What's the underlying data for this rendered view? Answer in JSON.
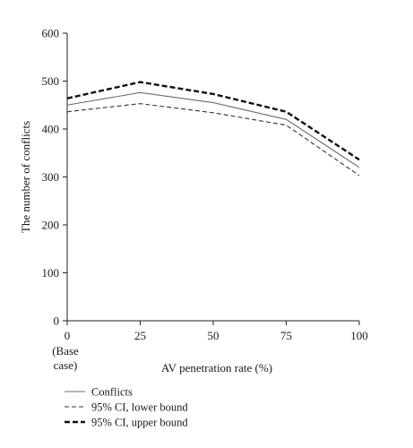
{
  "chart_data": {
    "type": "line",
    "title": "",
    "xlabel": "AV penetration rate (%)",
    "ylabel": "The number of conflicts",
    "x": [
      0,
      25,
      50,
      75,
      100
    ],
    "x_tick_labels": [
      "0",
      "25",
      "50",
      "75",
      "100"
    ],
    "x_tick_sublabel": [
      "(Base",
      "case)"
    ],
    "y_ticks": [
      0,
      100,
      200,
      300,
      400,
      500,
      600
    ],
    "ylim": [
      0,
      600
    ],
    "xlim": [
      0,
      100
    ],
    "grid": false,
    "legend_position": "bottom-left",
    "series": [
      {
        "name": "Conflicts",
        "style": "solid",
        "color": "#6a6a7a",
        "values": [
          450,
          476,
          455,
          420,
          320
        ]
      },
      {
        "name": "95% CI, lower bound",
        "style": "dashed-thin",
        "color": "#333333",
        "values": [
          436,
          453,
          434,
          408,
          303
        ]
      },
      {
        "name": "95% CI, upper bound",
        "style": "dashed-thick",
        "color": "#111111",
        "values": [
          464,
          498,
          473,
          436,
          336
        ]
      }
    ]
  }
}
